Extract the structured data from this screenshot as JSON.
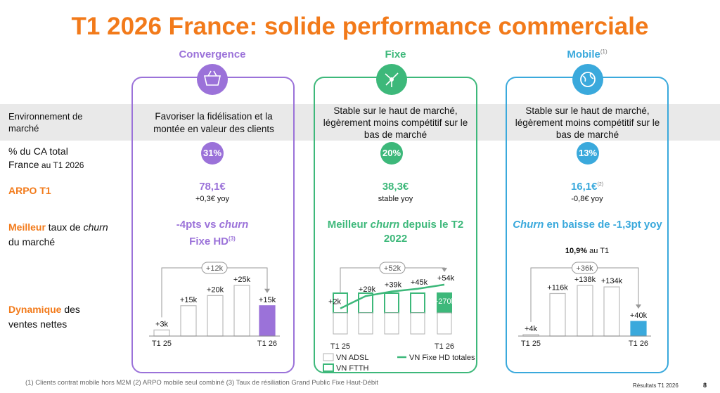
{
  "title": "T1 2026 France: solide performance commerciale",
  "row_labels": {
    "environment": "Environnement de marché",
    "share": [
      "% du CA total",
      "France",
      " au T1 2026"
    ],
    "arpo": "ARPO T1",
    "churn": [
      "Meilleur",
      " taux de ",
      "churn",
      " du marché"
    ],
    "sales": [
      "Dynamique",
      " des ventes nettes"
    ]
  },
  "columns": [
    {
      "name": "Convergence",
      "environment": "Favoriser la fidélisation et la montée en valeur des clients",
      "share": "31%",
      "arpo": "78,1€",
      "arpo_change": "+0,3€ yoy",
      "churn": [
        "-4pts vs ",
        "churn",
        " Fixe HD",
        "(3)"
      ],
      "chart": {
        "type": "bar",
        "categories": [
          "T1 25",
          null,
          null,
          null,
          "T1 26"
        ],
        "values": [
          3,
          15,
          20,
          25,
          15
        ],
        "value_labels": [
          "+3k",
          "+15k",
          "+20k",
          "+25k",
          "+15k"
        ],
        "change_label": "+12k",
        "color": "#9b72d9"
      }
    },
    {
      "name": "Fixe",
      "environment": "Stable sur le haut de marché, légèrement moins compétitif sur le bas de marché",
      "share": "20%",
      "arpo": "38,3€",
      "arpo_change": "stable yoy",
      "churn": [
        "Meilleur ",
        "churn",
        " depuis le T2 2022"
      ],
      "chart": {
        "type": "stacked_bar_line",
        "categories": [
          "T1 25",
          null,
          null,
          null,
          "T1 26"
        ],
        "series": [
          {
            "name": "VN ADSL",
            "color": "#b0b0b0",
            "values": [
              -30,
              -30,
              -30,
              -30,
              -30
            ]
          },
          {
            "name": "VN FTTH",
            "color": "#3db87a",
            "values": [
              28,
              28,
              28,
              28,
              28
            ]
          },
          {
            "name": "VN Fixe HD totales",
            "color": "#3db87a",
            "values": [
              2,
              29,
              39,
              45,
              54
            ],
            "value_labels": [
              "+2k",
              "+29k",
              "+39k",
              "+45k",
              "+54k"
            ]
          }
        ],
        "annotation": "+270k",
        "change_label": "+52k"
      }
    },
    {
      "name": "Mobile",
      "note": "(1)",
      "environment": "Stable sur le haut de marché, légèrement moins compétitif sur le bas de marché",
      "share": "13%",
      "arpo": "16,1€",
      "arpo_note": "(2)",
      "arpo_change": "-0,8€ yoy",
      "churn": [
        "Churn",
        " en baisse de -1,3pt yoy"
      ],
      "churn_detail": [
        "10,9%",
        " au T1"
      ],
      "chart": {
        "type": "bar",
        "categories": [
          "T1 25",
          null,
          null,
          null,
          "T1 26"
        ],
        "values": [
          4,
          116,
          138,
          134,
          40
        ],
        "value_labels": [
          "+4k",
          "+116k",
          "+138k",
          "+134k",
          "+40k"
        ],
        "change_label": "+36k",
        "color": "#3aa9dc"
      }
    }
  ],
  "footnote": "(1) Clients contrat mobile hors M2M (2) ARPO mobile seul combiné (3) Taux de résiliation Grand Public Fixe Haut-Débit",
  "footer": "Résultats T1 2026",
  "page_number": "8"
}
